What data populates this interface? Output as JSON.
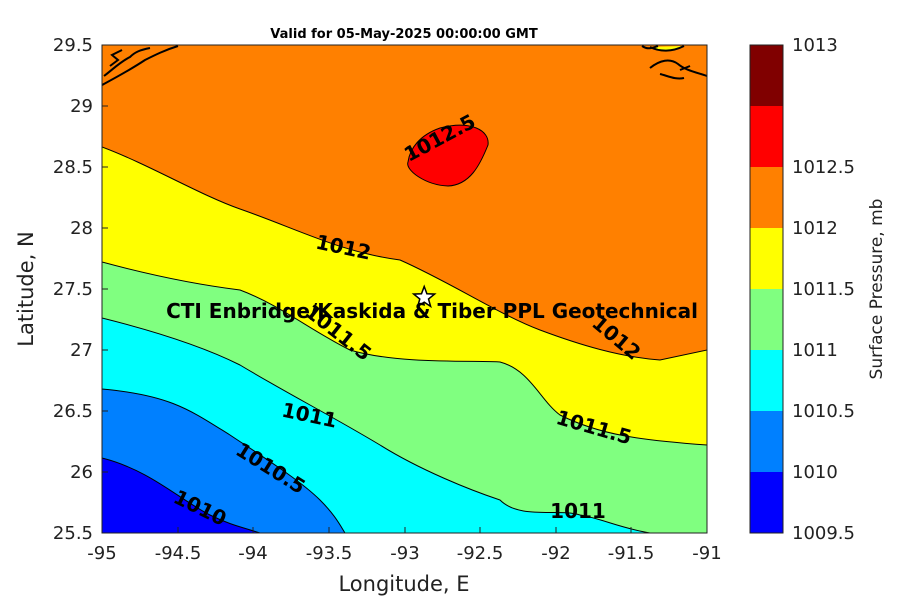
{
  "title": "Valid for 05-May-2025 00:00:00 GMT",
  "axes": {
    "xlabel": "Longitude, E",
    "ylabel": "Latitude, N",
    "xlim": [
      -95,
      -91
    ],
    "ylim": [
      25.5,
      29.5
    ],
    "xticks": [
      "-95",
      "-94.5",
      "-94",
      "-93.5",
      "-93",
      "-92.5",
      "-92",
      "-91.5",
      "-91"
    ],
    "yticks": [
      "25.5",
      "26",
      "26.5",
      "27",
      "27.5",
      "28",
      "28.5",
      "29",
      "29.5"
    ]
  },
  "colorbar": {
    "label": "Surface Pressure, mb",
    "ticks": [
      "1009.5",
      "1010",
      "1010.5",
      "1011",
      "1011.5",
      "1012",
      "1012.5",
      "1013"
    ],
    "colors": [
      "#0000ff",
      "#0080ff",
      "#00ffff",
      "#80ff80",
      "#ffff00",
      "#ff8000",
      "#ff0000",
      "#800000"
    ]
  },
  "contour_labels": [
    "1012.5",
    "1012",
    "1012",
    "1011.5",
    "1011.5",
    "1011",
    "1011",
    "1010.5",
    "1010"
  ],
  "site": {
    "label": "CTI Enbridge/Kaskida & Tiber PPL Geotechnical",
    "lon": -92.87,
    "lat": 27.43
  },
  "chart_data": {
    "type": "heatmap",
    "title": "Valid for 05-May-2025 00:00:00 GMT",
    "xlabel": "Longitude, E",
    "ylabel": "Latitude, N",
    "xlim": [
      -95,
      -91
    ],
    "ylim": [
      25.5,
      29.5
    ],
    "levels": [
      1009.5,
      1010,
      1010.5,
      1011,
      1011.5,
      1012,
      1012.5,
      1013
    ],
    "contours": [
      {
        "level": 1010,
        "points": [
          [
            -95,
            26.12
          ],
          [
            -94.5,
            25.9
          ],
          [
            -94.1,
            25.62
          ],
          [
            -93.95,
            25.5
          ]
        ]
      },
      {
        "level": 1010.5,
        "points": [
          [
            -95,
            26.68
          ],
          [
            -94.6,
            26.66
          ],
          [
            -94.1,
            26.35
          ],
          [
            -93.7,
            26.0
          ],
          [
            -93.5,
            25.68
          ],
          [
            -93.4,
            25.5
          ]
        ]
      },
      {
        "level": 1011,
        "points": [
          [
            -95,
            27.27
          ],
          [
            -94.4,
            27.0
          ],
          [
            -93.95,
            26.8
          ],
          [
            -93.5,
            26.5
          ],
          [
            -93.1,
            26.2
          ],
          [
            -92.7,
            26.02
          ],
          [
            -92.4,
            25.85
          ],
          [
            -92.2,
            25.62
          ],
          [
            -91.9,
            25.68
          ],
          [
            -91.65,
            25.52
          ],
          [
            -91.55,
            25.5
          ]
        ]
      },
      {
        "level": 1011.5,
        "points": [
          [
            -95,
            27.72
          ],
          [
            -94.4,
            27.56
          ],
          [
            -93.9,
            27.42
          ],
          [
            -93.5,
            27.18
          ],
          [
            -93.0,
            26.92
          ],
          [
            -92.5,
            26.9
          ],
          [
            -92.3,
            26.78
          ],
          [
            -92.0,
            26.5
          ],
          [
            -91.75,
            26.3
          ],
          [
            -91.4,
            26.23
          ],
          [
            -91,
            26.2
          ]
        ]
      },
      {
        "level": 1012,
        "points": [
          [
            -95,
            28.65
          ],
          [
            -94.5,
            28.42
          ],
          [
            -94.0,
            28.16
          ],
          [
            -93.6,
            27.95
          ],
          [
            -93.1,
            27.65
          ],
          [
            -92.6,
            27.3
          ],
          [
            -92.2,
            27.1
          ],
          [
            -91.9,
            27.0
          ],
          [
            -91.5,
            26.95
          ],
          [
            -91,
            27.0
          ]
        ]
      },
      {
        "level": 1012.5,
        "closed": true,
        "points": [
          [
            -92.8,
            28.88
          ],
          [
            -92.5,
            28.72
          ],
          [
            -92.7,
            28.4
          ],
          [
            -92.95,
            28.53
          ],
          [
            -92.95,
            28.7
          ]
        ]
      }
    ],
    "site": {
      "lon": -92.87,
      "lat": 27.43
    }
  }
}
